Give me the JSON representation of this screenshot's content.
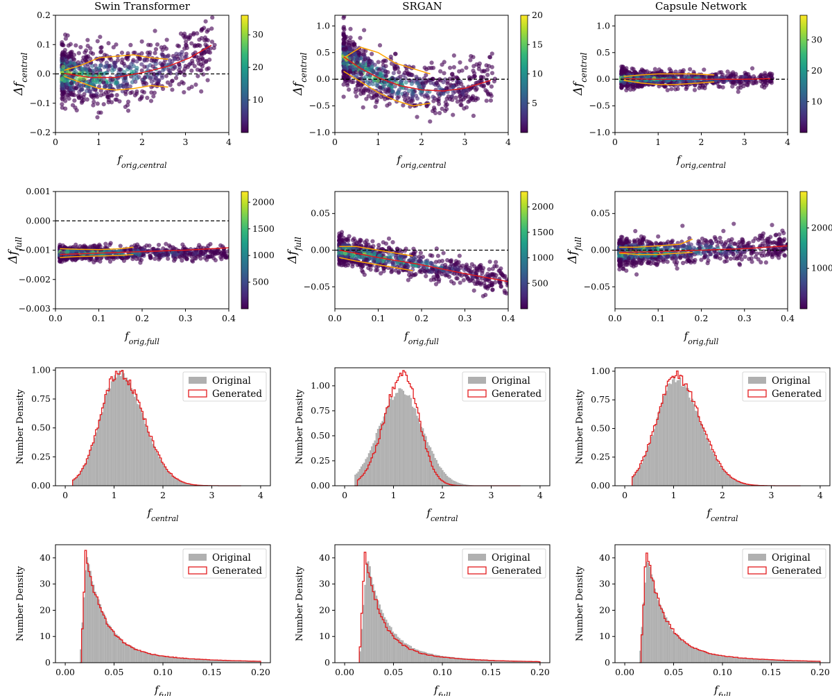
{
  "column_titles": [
    "Swin Transformer",
    "SRGAN",
    "Capsule Network"
  ],
  "colors": {
    "viridis": [
      "#440154",
      "#482878",
      "#3e4989",
      "#31688e",
      "#26828e",
      "#1f9e89",
      "#35b779",
      "#6ece58",
      "#b5de2b",
      "#fde725"
    ],
    "orig_fill": "#b0b0b0",
    "generated": "#e31a1c",
    "fit_line": "#e31a1c",
    "contour": "#ffa500",
    "zero_line": "#000000"
  },
  "chart_data": [
    {
      "type": "scatter",
      "panel": "row1-col1",
      "title": "Swin Transformer",
      "xlabel": "f_orig,central",
      "ylabel": "Δf_central",
      "xlim": [
        0,
        4
      ],
      "ylim": [
        -0.2,
        0.2
      ],
      "xticks": [
        "0",
        "1",
        "2",
        "3",
        "4"
      ],
      "yticks": [
        "−0.2",
        "−0.1",
        "0.0",
        "0.1",
        "0.2"
      ],
      "colorbar": {
        "range": [
          0,
          36
        ],
        "ticks": [
          "10",
          "20",
          "30"
        ]
      },
      "zero_line": 0,
      "fit_curve": {
        "x": [
          0.2,
          0.8,
          1.4,
          2.0,
          2.6,
          3.1,
          3.6
        ],
        "y": [
          0.002,
          -0.012,
          -0.012,
          0.004,
          0.026,
          0.055,
          0.098
        ]
      },
      "upper_band": {
        "x": [
          0.2,
          0.6,
          1.0,
          1.4,
          1.8,
          2.2,
          2.6
        ],
        "y": [
          0.012,
          0.03,
          0.055,
          0.06,
          0.065,
          0.055,
          0.05
        ]
      },
      "lower_band": {
        "x": [
          0.2,
          0.6,
          1.0,
          1.4,
          1.8,
          2.2,
          2.6
        ],
        "y": [
          -0.008,
          -0.03,
          -0.05,
          -0.055,
          -0.05,
          -0.04,
          -0.045
        ]
      },
      "point_cloud": {
        "x_range": [
          0.15,
          3.7
        ],
        "spread": 0.11
      }
    },
    {
      "type": "scatter",
      "panel": "row1-col2",
      "title": "SRGAN",
      "xlabel": "f_orig,central",
      "ylabel": "Δf_central",
      "xlim": [
        0,
        4
      ],
      "ylim": [
        -1.0,
        1.2
      ],
      "xticks": [
        "0",
        "1",
        "2",
        "3",
        "4"
      ],
      "yticks": [
        "−1.0",
        "−0.5",
        "0.0",
        "0.5",
        "1.0"
      ],
      "colorbar": {
        "range": [
          0,
          20
        ],
        "ticks": [
          "5",
          "10",
          "15",
          "20"
        ]
      },
      "zero_line": 0,
      "fit_curve": {
        "x": [
          0.2,
          0.6,
          1.0,
          1.5,
          2.0,
          2.5,
          3.0,
          3.6
        ],
        "y": [
          0.42,
          0.2,
          0.03,
          -0.12,
          -0.2,
          -0.22,
          -0.17,
          -0.02
        ]
      },
      "upper_band": {
        "x": [
          0.2,
          0.6,
          1.0,
          1.4,
          1.8,
          2.2
        ],
        "y": [
          0.4,
          0.6,
          0.5,
          0.3,
          0.2,
          0.1
        ]
      },
      "lower_band": {
        "x": [
          0.2,
          0.6,
          1.0,
          1.4,
          1.8,
          2.2
        ],
        "y": [
          0.15,
          -0.05,
          -0.25,
          -0.4,
          -0.5,
          -0.45
        ]
      },
      "point_cloud": {
        "x_range": [
          0.2,
          3.7
        ],
        "spread": 0.5
      }
    },
    {
      "type": "scatter",
      "panel": "row1-col3",
      "title": "Capsule Network",
      "xlabel": "f_orig,central",
      "ylabel": "Δf_central",
      "xlim": [
        0,
        4
      ],
      "ylim": [
        -1.0,
        1.2
      ],
      "xticks": [
        "0",
        "1",
        "2",
        "3",
        "4"
      ],
      "yticks": [
        "−1.0",
        "−0.5",
        "0.0",
        "0.5",
        "1.0"
      ],
      "colorbar": {
        "range": [
          0,
          38
        ],
        "ticks": [
          "10",
          "20",
          "30"
        ]
      },
      "zero_line": 0,
      "fit_curve": {
        "x": [
          0.2,
          1.0,
          2.0,
          3.0,
          3.6
        ],
        "y": [
          0.01,
          0.0,
          0.0,
          0.0,
          0.01
        ]
      },
      "upper_band": {
        "x": [
          0.2,
          0.6,
          1.0,
          1.4,
          1.8,
          2.3
        ],
        "y": [
          0.05,
          0.08,
          0.1,
          0.1,
          0.1,
          0.08
        ]
      },
      "lower_band": {
        "x": [
          0.2,
          0.6,
          1.0,
          1.4,
          1.8,
          2.3
        ],
        "y": [
          -0.02,
          -0.07,
          -0.1,
          -0.1,
          -0.08,
          -0.05
        ]
      },
      "point_cloud": {
        "x_range": [
          0.15,
          3.65
        ],
        "spread": 0.17
      }
    },
    {
      "type": "scatter",
      "panel": "row2-col1",
      "xlabel": "f_orig,full",
      "ylabel": "Δf_full",
      "xlim": [
        0,
        0.4
      ],
      "ylim": [
        -0.003,
        0.001
      ],
      "xticks": [
        "0.0",
        "0.1",
        "0.2",
        "0.3",
        "0.4"
      ],
      "yticks": [
        "−0.003",
        "−0.002",
        "−0.001",
        "0.000",
        "0.001"
      ],
      "colorbar": {
        "range": [
          0,
          2200
        ],
        "ticks": [
          "500",
          "1000",
          "1500",
          "2000"
        ]
      },
      "zero_line": 0,
      "fit_curve": {
        "x": [
          0.01,
          0.1,
          0.2,
          0.3,
          0.4
        ],
        "y": [
          -0.00115,
          -0.0011,
          -0.00105,
          -0.001,
          -0.00092
        ]
      },
      "upper_band": {
        "x": [
          0.01,
          0.05,
          0.1,
          0.15,
          0.18
        ],
        "y": [
          -0.00095,
          -0.00097,
          -0.00098,
          -0.00095,
          -0.0009
        ]
      },
      "lower_band": {
        "x": [
          0.01,
          0.05,
          0.1,
          0.15,
          0.18
        ],
        "y": [
          -0.00125,
          -0.00122,
          -0.0012,
          -0.00118,
          -0.00115
        ]
      },
      "point_cloud": {
        "x_range": [
          0.01,
          0.4
        ],
        "center": -0.0011,
        "spread": 0.00025
      }
    },
    {
      "type": "scatter",
      "panel": "row2-col2",
      "xlabel": "f_orig,full",
      "ylabel": "Δf_full",
      "xlim": [
        0,
        0.4
      ],
      "ylim": [
        -0.08,
        0.08
      ],
      "xticks": [
        "0.0",
        "0.1",
        "0.2",
        "0.3",
        "0.4"
      ],
      "yticks": [
        "−0.05",
        "0.00",
        "0.05"
      ],
      "colorbar": {
        "range": [
          0,
          2300
        ],
        "ticks": [
          "500",
          "1000",
          "1500",
          "2000"
        ]
      },
      "zero_line": 0,
      "fit_curve": {
        "x": [
          0.01,
          0.1,
          0.2,
          0.3,
          0.4
        ],
        "y": [
          0.0,
          -0.01,
          -0.02,
          -0.032,
          -0.043
        ]
      },
      "upper_band": {
        "x": [
          0.01,
          0.05,
          0.1,
          0.15,
          0.18
        ],
        "y": [
          0.005,
          0.005,
          0.0,
          -0.005,
          -0.008
        ]
      },
      "lower_band": {
        "x": [
          0.01,
          0.05,
          0.1,
          0.15,
          0.18
        ],
        "y": [
          -0.01,
          -0.015,
          -0.02,
          -0.025,
          -0.028
        ]
      },
      "point_cloud": {
        "x_range": [
          0.01,
          0.4
        ],
        "spread": 0.02
      }
    },
    {
      "type": "scatter",
      "panel": "row2-col3",
      "xlabel": "f_orig,full",
      "ylabel": "Δf_full",
      "xlim": [
        0,
        0.4
      ],
      "ylim": [
        -0.08,
        0.08
      ],
      "xticks": [
        "0.0",
        "0.1",
        "0.2",
        "0.3",
        "0.4"
      ],
      "yticks": [
        "−0.05",
        "0.00",
        "0.05"
      ],
      "colorbar": {
        "range": [
          0,
          2900
        ],
        "ticks": [
          "1000",
          "2000"
        ]
      },
      "zero_line": 0,
      "fit_curve": {
        "x": [
          0.01,
          0.1,
          0.2,
          0.3,
          0.4
        ],
        "y": [
          -0.003,
          -0.002,
          0.0,
          0.002,
          0.006
        ]
      },
      "upper_band": {
        "x": [
          0.01,
          0.05,
          0.1,
          0.15,
          0.18
        ],
        "y": [
          0.004,
          0.004,
          0.006,
          0.008,
          0.015
        ]
      },
      "lower_band": {
        "x": [
          0.01,
          0.05,
          0.1,
          0.15,
          0.18
        ],
        "y": [
          -0.004,
          -0.006,
          -0.006,
          -0.004,
          -0.003
        ]
      },
      "point_cloud": {
        "x_range": [
          0.01,
          0.4
        ],
        "spread": 0.02
      }
    },
    {
      "type": "histogram",
      "panel": "row3-col1",
      "xlabel": "f_central",
      "ylabel": "Number Density",
      "xlim": [
        -0.2,
        4.2
      ],
      "ylim": [
        0,
        1.02
      ],
      "xticks": [
        "0",
        "1",
        "2",
        "3",
        "4"
      ],
      "yticks": [
        "0.00",
        "0.25",
        "0.50",
        "0.75",
        "1.00"
      ],
      "legend": {
        "position": "top-right",
        "entries": [
          "Original",
          "Generated"
        ]
      },
      "original": {
        "peak": 1.1,
        "sigma_left": 0.38,
        "sigma_right": 0.5,
        "height": 0.98,
        "range": [
          0.15,
          3.6
        ]
      },
      "generated": {
        "peak": 1.1,
        "sigma_left": 0.38,
        "sigma_right": 0.5,
        "height": 0.99,
        "range": [
          0.15,
          3.6
        ]
      }
    },
    {
      "type": "histogram",
      "panel": "row3-col2",
      "xlabel": "f_central",
      "ylabel": "Number Density",
      "xlim": [
        -0.2,
        4.2
      ],
      "ylim": [
        0,
        1.18
      ],
      "xticks": [
        "0",
        "1",
        "2",
        "3",
        "4"
      ],
      "yticks": [
        "0.00",
        "0.25",
        "0.50",
        "0.75",
        "1.00"
      ],
      "legend": {
        "position": "top-right",
        "entries": [
          "Original",
          "Generated"
        ]
      },
      "original": {
        "peak": 1.15,
        "sigma_left": 0.45,
        "sigma_right": 0.45,
        "height": 0.95,
        "range": [
          0.2,
          3.6
        ]
      },
      "generated": {
        "peak": 1.2,
        "sigma_left": 0.38,
        "sigma_right": 0.32,
        "height": 1.13,
        "range": [
          0.25,
          3.6
        ]
      }
    },
    {
      "type": "histogram",
      "panel": "row3-col3",
      "xlabel": "f_central",
      "ylabel": "Number Density",
      "xlim": [
        -0.2,
        4.2
      ],
      "ylim": [
        0,
        1.03
      ],
      "xticks": [
        "0",
        "1",
        "2",
        "3",
        "4"
      ],
      "yticks": [
        "0.00",
        "0.25",
        "0.50",
        "0.75",
        "1.00"
      ],
      "legend": {
        "position": "top-right",
        "entries": [
          "Original",
          "Generated"
        ]
      },
      "original": {
        "peak": 1.05,
        "sigma_left": 0.4,
        "sigma_right": 0.5,
        "height": 0.93,
        "range": [
          0.15,
          3.6
        ]
      },
      "generated": {
        "peak": 1.05,
        "sigma_left": 0.4,
        "sigma_right": 0.5,
        "height": 0.96,
        "range": [
          0.15,
          3.6
        ]
      }
    },
    {
      "type": "histogram",
      "panel": "row4-col1",
      "xlabel": "f_full",
      "ylabel": "Number Density",
      "xlim": [
        -0.01,
        0.21
      ],
      "ylim": [
        0,
        45
      ],
      "xticks": [
        "0.00",
        "0.05",
        "0.10",
        "0.15",
        "0.20"
      ],
      "yticks": [
        "0",
        "10",
        "20",
        "30",
        "40"
      ],
      "legend": {
        "position": "top-right",
        "entries": [
          "Original",
          "Generated"
        ]
      },
      "original": {
        "start": 0.015,
        "peak": 0.022,
        "height": 42,
        "decay": 0.018,
        "range": [
          0.015,
          0.2
        ]
      },
      "generated": {
        "start": 0.016,
        "peak": 0.021,
        "height": 42,
        "decay": 0.018,
        "range": [
          0.015,
          0.2
        ]
      }
    },
    {
      "type": "histogram",
      "panel": "row4-col2",
      "xlabel": "f_full",
      "ylabel": "Number Density",
      "xlim": [
        -0.01,
        0.21
      ],
      "ylim": [
        0,
        45
      ],
      "xticks": [
        "0.00",
        "0.05",
        "0.10",
        "0.15",
        "0.20"
      ],
      "yticks": [
        "0",
        "10",
        "20",
        "30",
        "40"
      ],
      "legend": {
        "position": "top-right",
        "entries": [
          "Original",
          "Generated"
        ]
      },
      "original": {
        "start": 0.015,
        "peak": 0.023,
        "height": 41,
        "decay": 0.018,
        "range": [
          0.015,
          0.2
        ]
      },
      "generated": {
        "start": 0.015,
        "peak": 0.021,
        "height": 43,
        "decay": 0.016,
        "range": [
          0.015,
          0.2
        ]
      }
    },
    {
      "type": "histogram",
      "panel": "row4-col3",
      "xlabel": "f_full",
      "ylabel": "Number Density",
      "xlim": [
        -0.01,
        0.21
      ],
      "ylim": [
        0,
        45
      ],
      "xticks": [
        "0.00",
        "0.05",
        "0.10",
        "0.15",
        "0.20"
      ],
      "yticks": [
        "0",
        "10",
        "20",
        "30",
        "40"
      ],
      "legend": {
        "position": "top-right",
        "entries": [
          "Original",
          "Generated"
        ]
      },
      "original": {
        "start": 0.015,
        "peak": 0.023,
        "height": 42,
        "decay": 0.018,
        "range": [
          0.015,
          0.2
        ]
      },
      "generated": {
        "start": 0.016,
        "peak": 0.022,
        "height": 43,
        "decay": 0.018,
        "range": [
          0.015,
          0.2
        ]
      }
    }
  ]
}
